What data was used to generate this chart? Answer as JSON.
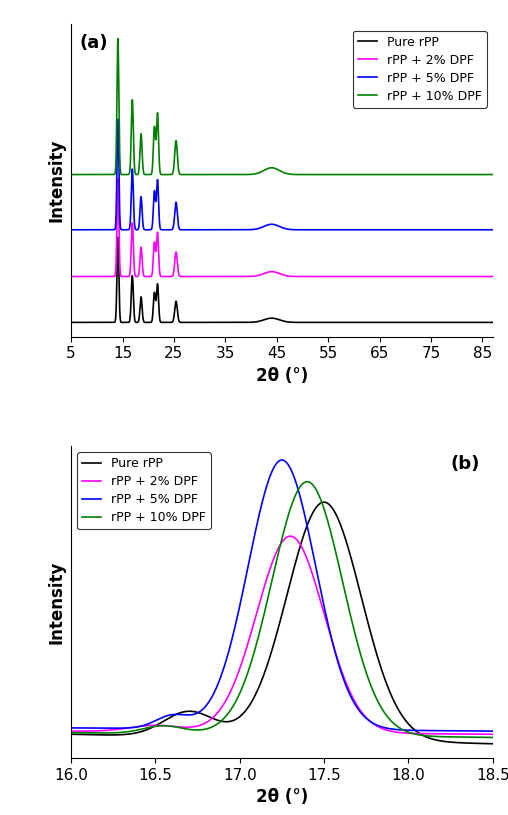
{
  "colors": {
    "black": "#000000",
    "magenta": "#FF00FF",
    "blue": "#0000FF",
    "green": "#008000"
  },
  "legend_labels": [
    "Pure rPP",
    "rPP + 2% DPF",
    "rPP + 5% DPF",
    "rPP + 10% DPF"
  ],
  "panel_a": {
    "xlabel": "2θ (°)",
    "ylabel": "Intensity",
    "xlim": [
      5,
      87
    ],
    "xticks": [
      5,
      15,
      25,
      35,
      45,
      55,
      65,
      75,
      85
    ],
    "label": "(a)"
  },
  "panel_b": {
    "xlabel": "2θ (°)",
    "ylabel": "Intensity",
    "xlim": [
      16,
      18.5
    ],
    "xticks": [
      16,
      16.5,
      17,
      17.5,
      18,
      18.5
    ],
    "label": "(b)"
  },
  "background_color": "#ffffff",
  "font_size": 11,
  "label_font_size": 12
}
